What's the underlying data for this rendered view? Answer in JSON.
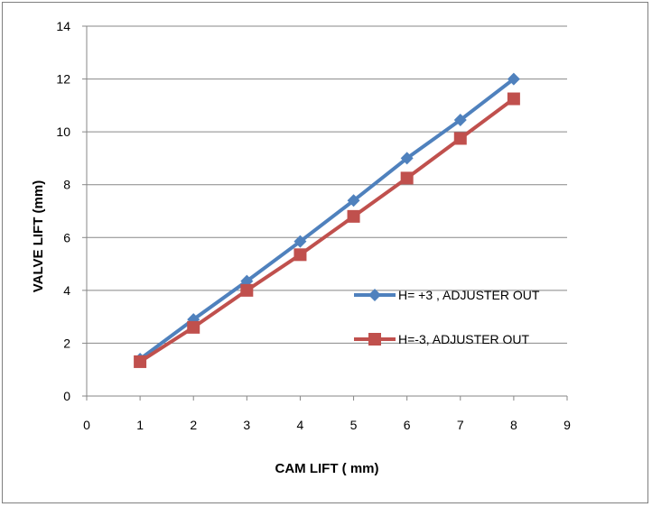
{
  "chart_data": {
    "type": "line",
    "title": "",
    "xlabel": "CAM LIFT ( mm)",
    "ylabel": "VALVE LIFT  (mm)",
    "xlim": [
      0,
      9
    ],
    "ylim": [
      0,
      14
    ],
    "xticks": [
      "0",
      "1",
      "2",
      "3",
      "4",
      "5",
      "6",
      "7",
      "8",
      "9"
    ],
    "yticks": [
      "0",
      "2",
      "4",
      "6",
      "8",
      "10",
      "12",
      "14"
    ],
    "grid": "horizontal",
    "legend_position": "right",
    "x": [
      1,
      2,
      3,
      4,
      5,
      6,
      7,
      8
    ],
    "series": [
      {
        "name": "H= +3 , ADJUSTER OUT",
        "values": [
          1.4,
          2.9,
          4.35,
          5.85,
          7.4,
          9.0,
          10.45,
          12.0
        ],
        "color": "#4f81bd",
        "marker": "diamond"
      },
      {
        "name": "H=-3, ADJUSTER OUT",
        "values": [
          1.3,
          2.6,
          4.0,
          5.35,
          6.8,
          8.25,
          9.75,
          11.25
        ],
        "color": "#c0504d",
        "marker": "square"
      }
    ]
  }
}
